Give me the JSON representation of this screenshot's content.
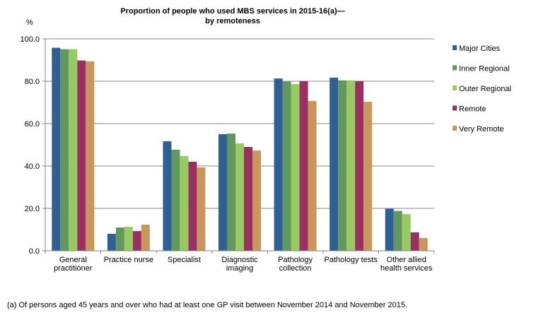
{
  "chart_data": {
    "type": "bar",
    "title": [
      "Proportion of people who used MBS services in 2015-16(a)—",
      "by remoteness"
    ],
    "ylabel": "%",
    "xlabel": "",
    "ylim": [
      0,
      100
    ],
    "yticks": [
      "0.0",
      "20.0",
      "40.0",
      "60.0",
      "80.0",
      "100.0"
    ],
    "grid": true,
    "legend_position": "right",
    "categories": [
      [
        "General",
        "practitioner"
      ],
      [
        "Practice nurse"
      ],
      [
        "Specialist"
      ],
      [
        "Diagnostic",
        "imaging"
      ],
      [
        "Pathology",
        "collection"
      ],
      [
        "Pathology tests"
      ],
      [
        "Other allied",
        "health services"
      ]
    ],
    "series": [
      {
        "name": "Major Cities",
        "color": "#2E6096",
        "values": [
          95.8,
          8.0,
          51.7,
          55.0,
          81.3,
          81.7,
          19.8
        ]
      },
      {
        "name": "Inner Regional",
        "color": "#61985E",
        "values": [
          95.1,
          11.0,
          47.7,
          55.3,
          79.8,
          80.4,
          18.8
        ]
      },
      {
        "name": "Outer Regional",
        "color": "#98C962",
        "values": [
          95.1,
          11.3,
          44.7,
          50.7,
          78.7,
          80.4,
          17.3
        ]
      },
      {
        "name": "Remote",
        "color": "#993060",
        "values": [
          89.8,
          9.3,
          42.0,
          49.0,
          80.0,
          80.0,
          8.7
        ]
      },
      {
        "name": "Very Remote",
        "color": "#C9965E",
        "values": [
          89.4,
          12.3,
          39.3,
          47.3,
          70.7,
          70.3,
          6.0
        ]
      }
    ]
  },
  "footnote": "(a) Of persons aged 45 years and over who had at least one GP visit between November 2014 and November 2015."
}
